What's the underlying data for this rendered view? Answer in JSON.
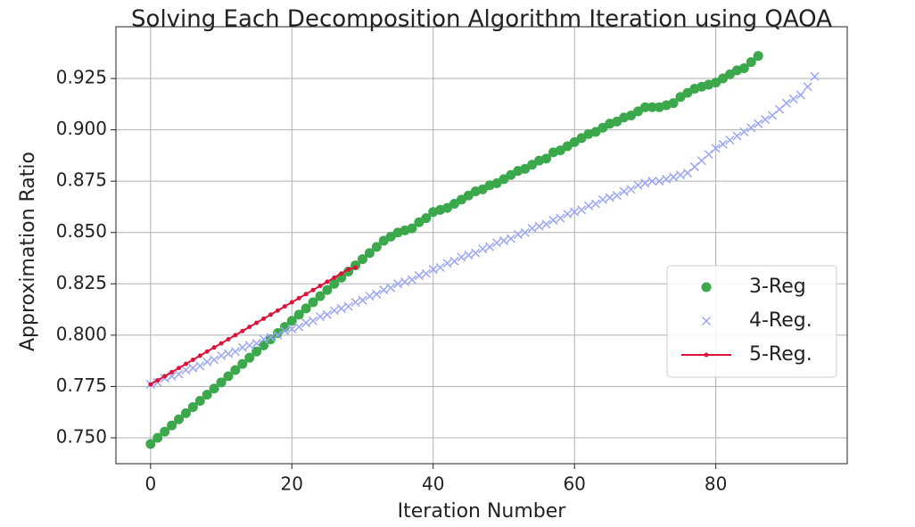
{
  "chart_data": {
    "type": "scatter",
    "title": "Solving Each Decomposition Algorithm Iteration using QAOA",
    "xlabel": "Iteration Number",
    "ylabel": "Approximation Ratio",
    "xlim": [
      -4.9,
      98.6
    ],
    "ylim": [
      0.7374,
      0.9502
    ],
    "xticks": [
      0,
      20,
      40,
      60,
      80
    ],
    "yticks": [
      {
        "value": 0.75,
        "label": "0.750"
      },
      {
        "value": 0.775,
        "label": "0.775"
      },
      {
        "value": 0.8,
        "label": "0.800"
      },
      {
        "value": 0.825,
        "label": "0.825"
      },
      {
        "value": 0.85,
        "label": "0.850"
      },
      {
        "value": 0.875,
        "label": "0.875"
      },
      {
        "value": 0.9,
        "label": "0.900"
      },
      {
        "value": 0.925,
        "label": "0.925"
      }
    ],
    "grid": true,
    "legend": "lower right",
    "series": [
      {
        "name": "3-Reg",
        "color": "#3aa84b",
        "marker": "o",
        "x": [
          0,
          1,
          2,
          3,
          4,
          5,
          6,
          7,
          8,
          9,
          10,
          11,
          12,
          13,
          14,
          15,
          16,
          17,
          18,
          19,
          20,
          21,
          22,
          23,
          24,
          25,
          26,
          27,
          28,
          29,
          30,
          31,
          32,
          33,
          34,
          35,
          36,
          37,
          38,
          39,
          40,
          41,
          42,
          43,
          44,
          45,
          46,
          47,
          48,
          49,
          50,
          51,
          52,
          53,
          54,
          55,
          56,
          57,
          58,
          59,
          60,
          61,
          62,
          63,
          64,
          65,
          66,
          67,
          68,
          69,
          70,
          71,
          72,
          73,
          74,
          75,
          76,
          77,
          78,
          79,
          80,
          81,
          82,
          83,
          84,
          85,
          86
        ],
        "values": [
          0.747,
          0.75,
          0.753,
          0.756,
          0.759,
          0.762,
          0.765,
          0.768,
          0.771,
          0.774,
          0.777,
          0.78,
          0.783,
          0.786,
          0.789,
          0.792,
          0.795,
          0.798,
          0.801,
          0.804,
          0.807,
          0.81,
          0.813,
          0.816,
          0.819,
          0.822,
          0.825,
          0.828,
          0.831,
          0.834,
          0.837,
          0.84,
          0.843,
          0.846,
          0.848,
          0.85,
          0.851,
          0.852,
          0.855,
          0.857,
          0.86,
          0.861,
          0.862,
          0.864,
          0.866,
          0.868,
          0.87,
          0.871,
          0.873,
          0.874,
          0.876,
          0.878,
          0.88,
          0.881,
          0.883,
          0.885,
          0.886,
          0.889,
          0.89,
          0.892,
          0.894,
          0.896,
          0.898,
          0.899,
          0.901,
          0.903,
          0.904,
          0.906,
          0.907,
          0.909,
          0.911,
          0.911,
          0.911,
          0.912,
          0.913,
          0.916,
          0.918,
          0.92,
          0.921,
          0.922,
          0.923,
          0.925,
          0.927,
          0.929,
          0.93,
          0.933,
          0.936
        ]
      },
      {
        "name": "4-Reg.",
        "color": "#9aa6f5",
        "marker": "x",
        "x": [
          0,
          1,
          2,
          3,
          4,
          5,
          6,
          7,
          8,
          9,
          10,
          11,
          12,
          13,
          14,
          15,
          16,
          17,
          18,
          19,
          20,
          21,
          22,
          23,
          24,
          25,
          26,
          27,
          28,
          29,
          30,
          31,
          32,
          33,
          34,
          35,
          36,
          37,
          38,
          39,
          40,
          41,
          42,
          43,
          44,
          45,
          46,
          47,
          48,
          49,
          50,
          51,
          52,
          53,
          54,
          55,
          56,
          57,
          58,
          59,
          60,
          61,
          62,
          63,
          64,
          65,
          66,
          67,
          68,
          69,
          70,
          71,
          72,
          73,
          74,
          75,
          76,
          77,
          78,
          79,
          80,
          81,
          82,
          83,
          84,
          85,
          86,
          87,
          88,
          89,
          90,
          91,
          92,
          93,
          94
        ],
        "values": [
          0.776,
          0.777,
          0.779,
          0.78,
          0.781,
          0.783,
          0.784,
          0.785,
          0.787,
          0.788,
          0.79,
          0.791,
          0.792,
          0.794,
          0.795,
          0.796,
          0.798,
          0.799,
          0.8,
          0.802,
          0.803,
          0.804,
          0.806,
          0.807,
          0.809,
          0.81,
          0.812,
          0.813,
          0.814,
          0.816,
          0.817,
          0.819,
          0.82,
          0.822,
          0.823,
          0.825,
          0.826,
          0.827,
          0.829,
          0.83,
          0.832,
          0.833,
          0.835,
          0.836,
          0.838,
          0.839,
          0.84,
          0.842,
          0.843,
          0.845,
          0.846,
          0.847,
          0.849,
          0.85,
          0.852,
          0.853,
          0.854,
          0.856,
          0.857,
          0.859,
          0.86,
          0.861,
          0.863,
          0.864,
          0.866,
          0.867,
          0.868,
          0.87,
          0.871,
          0.873,
          0.874,
          0.875,
          0.875,
          0.876,
          0.877,
          0.878,
          0.879,
          0.882,
          0.885,
          0.888,
          0.891,
          0.893,
          0.895,
          0.897,
          0.899,
          0.901,
          0.903,
          0.905,
          0.907,
          0.91,
          0.913,
          0.915,
          0.917,
          0.921,
          0.926
        ]
      },
      {
        "name": "5-Reg.",
        "color": "#dc143c",
        "marker": ".-",
        "x": [
          0,
          1,
          2,
          3,
          4,
          5,
          6,
          7,
          8,
          9,
          10,
          11,
          12,
          13,
          14,
          15,
          16,
          17,
          18,
          19,
          20,
          21,
          22,
          23,
          24,
          25,
          26,
          27,
          28,
          29
        ],
        "values": [
          0.776,
          0.778,
          0.78,
          0.782,
          0.784,
          0.786,
          0.788,
          0.79,
          0.792,
          0.794,
          0.796,
          0.798,
          0.8,
          0.802,
          0.804,
          0.806,
          0.808,
          0.81,
          0.812,
          0.814,
          0.816,
          0.818,
          0.82,
          0.822,
          0.824,
          0.826,
          0.828,
          0.83,
          0.832,
          0.833
        ]
      }
    ]
  }
}
